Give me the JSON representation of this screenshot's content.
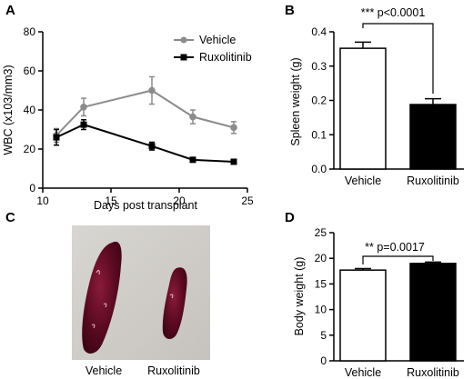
{
  "panel_letters": {
    "a": "A",
    "b": "B",
    "c": "C",
    "d": "D"
  },
  "colors": {
    "vehicle": "#8c8c8c",
    "ruxolitinib": "#000000",
    "bar_vehicle": "#ffffff",
    "bar_ruxolitinib": "#000000"
  },
  "chart_data": [
    {
      "panel": "A",
      "type": "line",
      "xlabel": "Days post transplant",
      "ylabel": "WBC (x103/mm3)",
      "xlim": [
        10,
        25
      ],
      "ylim": [
        0,
        80
      ],
      "xticks": [
        "10",
        "15",
        "20",
        "25"
      ],
      "yticks": [
        "0",
        "20",
        "40",
        "60",
        "80"
      ],
      "legend_position": "top-right",
      "series": [
        {
          "name": "Vehicle",
          "marker": "circle",
          "color": "#8c8c8c",
          "x": [
            11,
            13,
            18,
            21,
            24
          ],
          "y": [
            27,
            41.5,
            50,
            36.5,
            31
          ],
          "err": [
            3.5,
            4.5,
            7,
            3.5,
            3
          ]
        },
        {
          "name": "Ruxolitinib",
          "marker": "square",
          "color": "#000000",
          "x": [
            11,
            13,
            18,
            21,
            24
          ],
          "y": [
            26,
            32.5,
            21.5,
            14.5,
            13.5
          ],
          "err": [
            4,
            2.5,
            2,
            1,
            1
          ]
        }
      ]
    },
    {
      "panel": "B",
      "type": "bar",
      "ylabel": "Spleen weight (g)",
      "categories": [
        "Vehicle",
        "Ruxolitinib"
      ],
      "values": [
        0.352,
        0.188
      ],
      "err": [
        0.018,
        0.017
      ],
      "ylim": [
        0,
        0.4
      ],
      "yticks": [
        "0.0",
        "0.1",
        "0.2",
        "0.3",
        "0.4"
      ],
      "annotation": "*** p<0.0001"
    },
    {
      "panel": "D",
      "type": "bar",
      "ylabel": "Body weight (g)",
      "categories": [
        "Vehicle",
        "Ruxolitinib"
      ],
      "values": [
        17.7,
        19.0
      ],
      "err": [
        0.3,
        0.25
      ],
      "ylim": [
        0,
        25
      ],
      "yticks": [
        "0",
        "5",
        "10",
        "15",
        "20",
        "25"
      ],
      "annotation": "** p=0.0017"
    }
  ],
  "photo": {
    "labels": [
      "Vehicle",
      "Ruxolitinib"
    ]
  }
}
